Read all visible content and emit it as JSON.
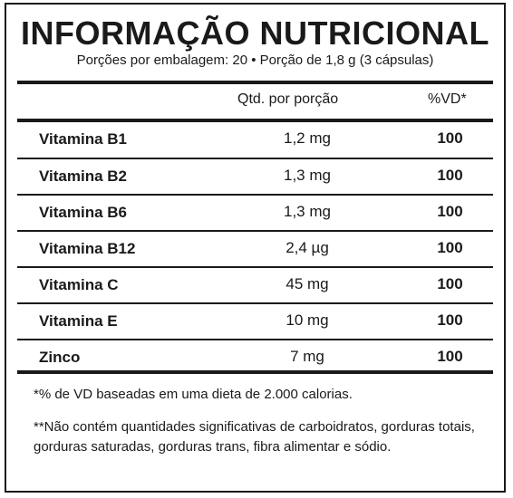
{
  "panel": {
    "title": "INFORMAÇÃO NUTRICIONAL",
    "subtitle": "Porções por embalagem: 20 • Porção de 1,8 g (3 cápsulas)"
  },
  "table": {
    "headers": {
      "quantity": "Qtd. por porção",
      "dv": "%VD*"
    },
    "rows": [
      {
        "name": "Vitamina B1",
        "quantity": "1,2 mg",
        "dv": "100"
      },
      {
        "name": "Vitamina B2",
        "quantity": "1,3 mg",
        "dv": "100"
      },
      {
        "name": "Vitamina B6",
        "quantity": "1,3 mg",
        "dv": "100"
      },
      {
        "name": "Vitamina B12",
        "quantity": "2,4 µg",
        "dv": "100"
      },
      {
        "name": "Vitamina C",
        "quantity": "45 mg",
        "dv": "100"
      },
      {
        "name": "Vitamina E",
        "quantity": "10 mg",
        "dv": "100"
      },
      {
        "name": "Zinco",
        "quantity": "7 mg",
        "dv": "100"
      }
    ]
  },
  "footnotes": {
    "dv_note": "*% de VD baseadas em uma dieta de 2.000 calorias.",
    "non_significant": "**Não contém quantidades significativas de carboidratos, gorduras totais, gorduras saturadas, gorduras trans, fibra alimentar e sódio."
  }
}
